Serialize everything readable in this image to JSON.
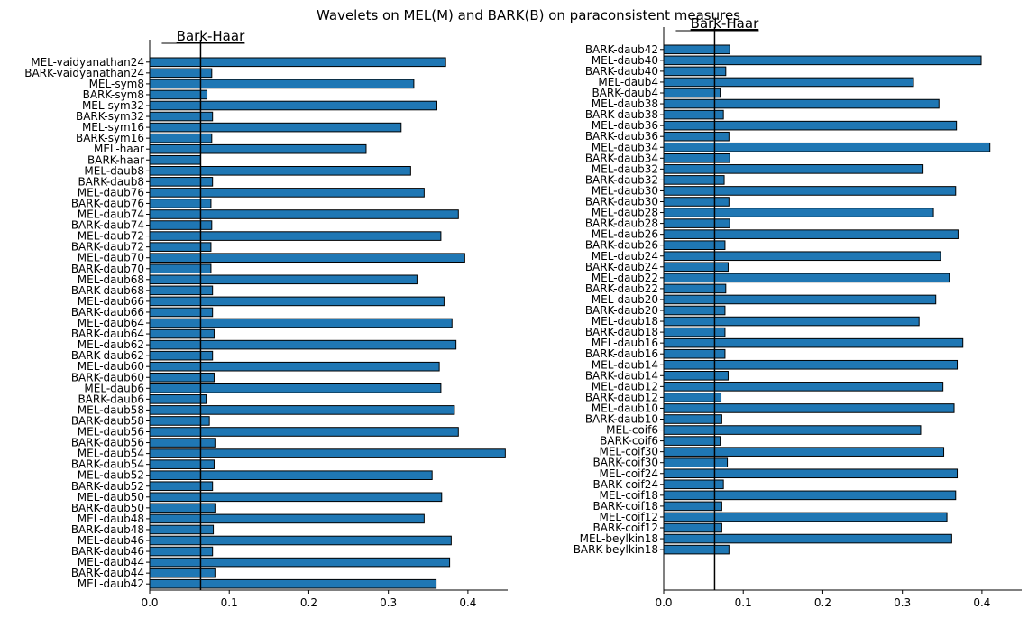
{
  "figure_title": "Wavelets on MEL(M) and BARK(B) on paraconsistent measures",
  "chart_data": [
    {
      "type": "bar",
      "orientation": "horizontal",
      "title": "",
      "xlabel": "",
      "ylabel": "",
      "xlim": [
        0,
        0.45
      ],
      "xticks": [
        "0.0",
        "0.1",
        "0.2",
        "0.3",
        "0.4"
      ],
      "grid": false,
      "legend": "none",
      "bar_color": "#1f77b4",
      "reference_line": {
        "label": "Bark-Haar",
        "value": 0.064
      },
      "categories": [
        "MEL-vaidyanathan24",
        "BARK-vaidyanathan24",
        "MEL-sym8",
        "BARK-sym8",
        "MEL-sym32",
        "BARK-sym32",
        "MEL-sym16",
        "BARK-sym16",
        "MEL-haar",
        "BARK-haar",
        "MEL-daub8",
        "BARK-daub8",
        "MEL-daub76",
        "BARK-daub76",
        "MEL-daub74",
        "BARK-daub74",
        "MEL-daub72",
        "BARK-daub72",
        "MEL-daub70",
        "BARK-daub70",
        "MEL-daub68",
        "BARK-daub68",
        "MEL-daub66",
        "BARK-daub66",
        "MEL-daub64",
        "BARK-daub64",
        "MEL-daub62",
        "BARK-daub62",
        "MEL-daub60",
        "BARK-daub60",
        "MEL-daub6",
        "BARK-daub6",
        "MEL-daub58",
        "BARK-daub58",
        "MEL-daub56",
        "BARK-daub56",
        "MEL-daub54",
        "BARK-daub54",
        "MEL-daub52",
        "BARK-daub52",
        "MEL-daub50",
        "BARK-daub50",
        "MEL-daub48",
        "BARK-daub48",
        "MEL-daub46",
        "BARK-daub46",
        "MEL-daub44",
        "BARK-daub44",
        "MEL-daub42"
      ],
      "values": [
        0.372,
        0.078,
        0.332,
        0.072,
        0.361,
        0.079,
        0.316,
        0.078,
        0.272,
        0.064,
        0.328,
        0.079,
        0.345,
        0.077,
        0.388,
        0.078,
        0.366,
        0.077,
        0.396,
        0.077,
        0.336,
        0.079,
        0.37,
        0.079,
        0.38,
        0.081,
        0.385,
        0.079,
        0.364,
        0.081,
        0.366,
        0.071,
        0.383,
        0.075,
        0.388,
        0.082,
        0.447,
        0.081,
        0.355,
        0.079,
        0.367,
        0.082,
        0.345,
        0.08,
        0.379,
        0.079,
        0.377,
        0.082,
        0.36
      ]
    },
    {
      "type": "bar",
      "orientation": "horizontal",
      "title": "",
      "xlabel": "",
      "ylabel": "",
      "xlim": [
        0,
        0.45
      ],
      "xticks": [
        "0.0",
        "0.1",
        "0.2",
        "0.3",
        "0.4"
      ],
      "grid": false,
      "legend": "none",
      "bar_color": "#1f77b4",
      "reference_line": {
        "label": "Bark-Haar",
        "value": 0.064
      },
      "categories": [
        "BARK-daub42",
        "MEL-daub40",
        "BARK-daub40",
        "MEL-daub4",
        "BARK-daub4",
        "MEL-daub38",
        "BARK-daub38",
        "MEL-daub36",
        "BARK-daub36",
        "MEL-daub34",
        "BARK-daub34",
        "MEL-daub32",
        "BARK-daub32",
        "MEL-daub30",
        "BARK-daub30",
        "MEL-daub28",
        "BARK-daub28",
        "MEL-daub26",
        "BARK-daub26",
        "MEL-daub24",
        "BARK-daub24",
        "MEL-daub22",
        "BARK-daub22",
        "MEL-daub20",
        "BARK-daub20",
        "MEL-daub18",
        "BARK-daub18",
        "MEL-daub16",
        "BARK-daub16",
        "MEL-daub14",
        "BARK-daub14",
        "MEL-daub12",
        "BARK-daub12",
        "MEL-daub10",
        "BARK-daub10",
        "MEL-coif6",
        "BARK-coif6",
        "MEL-coif30",
        "BARK-coif30",
        "MEL-coif24",
        "BARK-coif24",
        "MEL-coif18",
        "BARK-coif18",
        "MEL-coif12",
        "BARK-coif12",
        "MEL-beylkin18",
        "BARK-beylkin18"
      ],
      "values": [
        0.083,
        0.399,
        0.078,
        0.314,
        0.071,
        0.346,
        0.075,
        0.368,
        0.082,
        0.41,
        0.083,
        0.326,
        0.076,
        0.367,
        0.082,
        0.339,
        0.083,
        0.37,
        0.077,
        0.348,
        0.081,
        0.359,
        0.078,
        0.342,
        0.077,
        0.321,
        0.077,
        0.376,
        0.077,
        0.369,
        0.081,
        0.351,
        0.072,
        0.365,
        0.073,
        0.323,
        0.071,
        0.352,
        0.08,
        0.369,
        0.075,
        0.367,
        0.073,
        0.356,
        0.073,
        0.362,
        0.082
      ]
    }
  ]
}
